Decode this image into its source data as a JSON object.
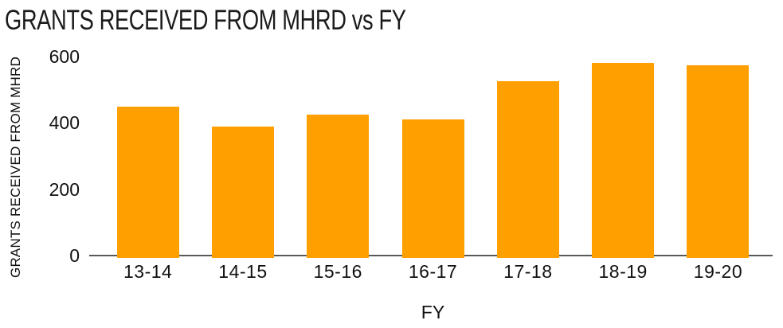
{
  "chart_data": {
    "type": "bar",
    "title": "GRANTS RECEIVED FROM MHRD vs FY",
    "xlabel": "FY",
    "ylabel": "GRANTS RECEIVED FROM MHRD",
    "categories": [
      "13-14",
      "14-15",
      "15-16",
      "16-17",
      "17-18",
      "18-19",
      "19-20"
    ],
    "values": [
      450,
      390,
      425,
      410,
      525,
      580,
      575
    ],
    "ylim": [
      0,
      600
    ],
    "yticks": [
      0,
      200,
      400,
      600
    ],
    "grid": false,
    "legend": "none",
    "bar_color": "#FFA000",
    "axis_line_color": "#58595B",
    "text_color": "#111111",
    "title_color": "#1B1B1B",
    "background": "#FFFFFF"
  }
}
